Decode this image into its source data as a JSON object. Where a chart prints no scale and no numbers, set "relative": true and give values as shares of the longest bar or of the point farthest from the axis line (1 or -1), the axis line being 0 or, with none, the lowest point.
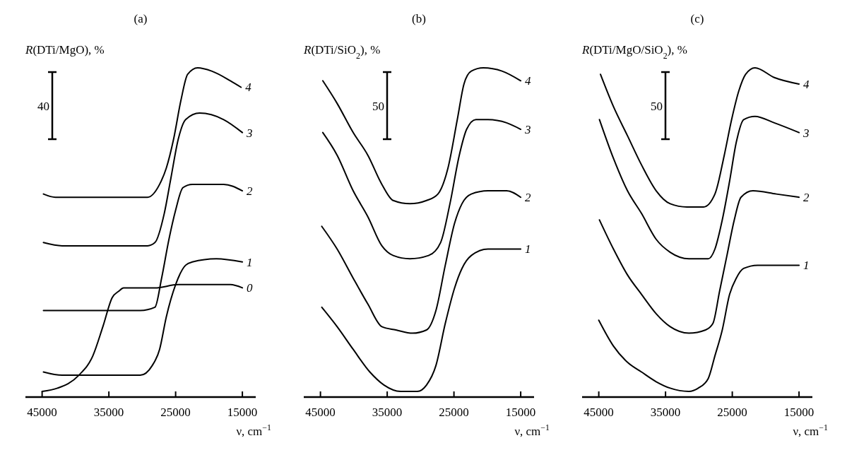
{
  "chart_data": [
    {
      "type": "line",
      "title": "(a)",
      "ylabel": "R(DTi/MgO), %",
      "xlabel": "ν, cm$^{−1}$",
      "xlim": [
        47500,
        13000
      ],
      "xticks": [
        45000,
        35000,
        25000,
        15000
      ],
      "relative": true,
      "annotations": [
        "40"
      ],
      "series": [
        {
          "name": "4",
          "color": "#000000",
          "x": [
            44800,
            43000,
            39000,
            35000,
            31000,
            29200,
            27400,
            26400,
            25300,
            24200,
            23200,
            21700,
            19600,
            16800,
            15200
          ],
          "values": [
            0.61,
            0.6,
            0.6,
            0.6,
            0.6,
            0.6,
            0.64,
            0.69,
            0.78,
            0.9,
            0.98,
            1.0,
            0.99,
            0.96,
            0.94
          ]
        },
        {
          "name": "3",
          "color": "#000000",
          "x": [
            44800,
            42000,
            38000,
            34000,
            29200,
            28100,
            26700,
            25700,
            24600,
            23500,
            21400,
            17800,
            15000
          ],
          "values": [
            0.46,
            0.45,
            0.45,
            0.45,
            0.45,
            0.46,
            0.55,
            0.66,
            0.78,
            0.84,
            0.86,
            0.84,
            0.8
          ]
        },
        {
          "name": "2",
          "color": "#000000",
          "x": [
            44800,
            42000,
            38000,
            34000,
            30300,
            28100,
            27100,
            26000,
            25000,
            23900,
            22500,
            17800,
            15000
          ],
          "values": [
            0.25,
            0.25,
            0.25,
            0.25,
            0.25,
            0.26,
            0.35,
            0.47,
            0.56,
            0.63,
            0.64,
            0.64,
            0.62
          ]
        },
        {
          "name": "1",
          "color": "#000000",
          "x": [
            44800,
            42000,
            38000,
            34000,
            30300,
            28500,
            27400,
            26400,
            25000,
            23500,
            22500,
            18900,
            15000
          ],
          "values": [
            0.06,
            0.05,
            0.05,
            0.05,
            0.05,
            0.08,
            0.13,
            0.23,
            0.33,
            0.39,
            0.4,
            0.41,
            0.4
          ]
        },
        {
          "name": "0",
          "color": "#000000",
          "x": [
            45000,
            42700,
            39500,
            37400,
            35900,
            34500,
            33500,
            32800,
            29600,
            28100,
            24600,
            16800,
            15000
          ],
          "values": [
            0.0,
            0.01,
            0.05,
            0.11,
            0.2,
            0.29,
            0.31,
            0.32,
            0.32,
            0.32,
            0.33,
            0.33,
            0.32
          ]
        }
      ]
    },
    {
      "type": "line",
      "title": "(b)",
      "ylabel": "R(DTi/SiO$_{2}$), %",
      "xlabel": "ν, cm$^{−1}$",
      "xlim": [
        47500,
        13000
      ],
      "xticks": [
        45000,
        35000,
        25000,
        15000
      ],
      "relative": true,
      "annotations": [
        "50"
      ],
      "series": [
        {
          "name": "4",
          "color": "#000000",
          "x": [
            44650,
            42500,
            40100,
            37900,
            35800,
            34100,
            31600,
            29100,
            27400,
            25900,
            24500,
            23500,
            22400,
            20600,
            17800,
            15000
          ],
          "values": [
            0.96,
            0.89,
            0.8,
            0.73,
            0.64,
            0.59,
            0.58,
            0.59,
            0.61,
            0.69,
            0.84,
            0.95,
            0.99,
            1.0,
            0.99,
            0.96
          ]
        },
        {
          "name": "3",
          "color": "#000000",
          "x": [
            44650,
            42500,
            40100,
            37900,
            35800,
            34100,
            31600,
            28800,
            27000,
            25600,
            24200,
            23100,
            21700,
            19900,
            17100,
            15000
          ],
          "values": [
            0.8,
            0.73,
            0.62,
            0.54,
            0.45,
            0.42,
            0.41,
            0.42,
            0.46,
            0.58,
            0.73,
            0.81,
            0.84,
            0.84,
            0.83,
            0.81
          ]
        },
        {
          "name": "2",
          "color": "#000000",
          "x": [
            44800,
            42500,
            40100,
            37900,
            35800,
            33700,
            31200,
            29100,
            27700,
            26300,
            24900,
            23800,
            22400,
            19900,
            17100,
            15000
          ],
          "values": [
            0.51,
            0.44,
            0.35,
            0.27,
            0.2,
            0.19,
            0.18,
            0.19,
            0.25,
            0.39,
            0.52,
            0.58,
            0.61,
            0.62,
            0.62,
            0.6
          ]
        },
        {
          "name": "1",
          "color": "#000000",
          "x": [
            44800,
            42500,
            40100,
            37600,
            35500,
            33000,
            30500,
            29100,
            27700,
            26300,
            24900,
            23800,
            22400,
            19900,
            16400,
            15000
          ],
          "values": [
            0.26,
            0.2,
            0.13,
            0.06,
            0.02,
            0.0,
            0.0,
            0.02,
            0.08,
            0.21,
            0.32,
            0.38,
            0.42,
            0.44,
            0.44,
            0.44
          ]
        }
      ]
    },
    {
      "type": "line",
      "title": "(c)",
      "ylabel": "R(DTi/MgO/SiO$_{2}$), %",
      "xlabel": "ν, cm$^{−1}$",
      "xlim": [
        47500,
        13000
      ],
      "xticks": [
        45000,
        35000,
        25000,
        15000
      ],
      "relative": true,
      "annotations": [
        "50"
      ],
      "series": [
        {
          "name": "4",
          "color": "#000000",
          "x": [
            44750,
            42800,
            40700,
            38600,
            36400,
            34300,
            31800,
            29300,
            27600,
            26200,
            25100,
            24000,
            23000,
            21600,
            18700,
            15000
          ],
          "values": [
            0.98,
            0.88,
            0.79,
            0.7,
            0.62,
            0.58,
            0.57,
            0.57,
            0.61,
            0.73,
            0.84,
            0.93,
            0.98,
            1.0,
            0.97,
            0.95
          ]
        },
        {
          "name": "3",
          "color": "#000000",
          "x": [
            44900,
            42800,
            40700,
            38600,
            36400,
            34300,
            31500,
            28600,
            27600,
            26500,
            25400,
            24400,
            23300,
            21600,
            18700,
            15000
          ],
          "values": [
            0.84,
            0.72,
            0.62,
            0.55,
            0.47,
            0.43,
            0.41,
            0.41,
            0.44,
            0.53,
            0.65,
            0.77,
            0.84,
            0.85,
            0.83,
            0.8
          ]
        },
        {
          "name": "2",
          "color": "#000000",
          "x": [
            44900,
            42800,
            40700,
            38600,
            36400,
            34300,
            31500,
            29000,
            27900,
            26900,
            25800,
            24700,
            23700,
            21900,
            18400,
            15000
          ],
          "values": [
            0.53,
            0.44,
            0.36,
            0.3,
            0.24,
            0.2,
            0.18,
            0.19,
            0.21,
            0.31,
            0.42,
            0.53,
            0.6,
            0.62,
            0.61,
            0.6
          ]
        },
        {
          "name": "1",
          "color": "#000000",
          "x": [
            45000,
            42800,
            40700,
            38600,
            36400,
            34300,
            31500,
            30100,
            28600,
            27600,
            26500,
            25400,
            24400,
            23300,
            21200,
            15000
          ],
          "values": [
            0.22,
            0.14,
            0.09,
            0.06,
            0.03,
            0.01,
            0.0,
            0.01,
            0.04,
            0.11,
            0.19,
            0.3,
            0.35,
            0.38,
            0.39,
            0.39
          ]
        }
      ]
    }
  ]
}
